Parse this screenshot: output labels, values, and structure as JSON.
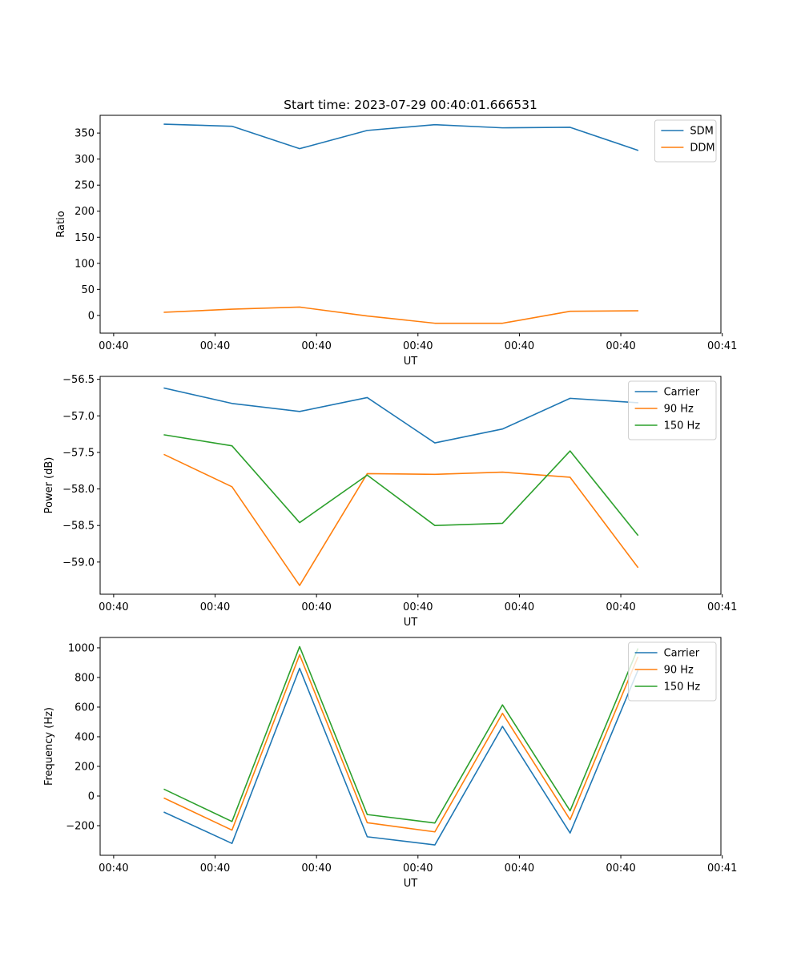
{
  "figure": {
    "title": "Start time: 2023-07-29 00:40:01.666531"
  },
  "chart_data": [
    {
      "type": "line",
      "ylabel": "Ratio",
      "xlabel": "UT",
      "ylim": [
        -34,
        384
      ],
      "yticks": [
        0,
        50,
        100,
        150,
        200,
        250,
        300,
        350
      ],
      "ytick_labels": [
        "0",
        "50",
        "100",
        "150",
        "200",
        "250",
        "300",
        "350"
      ],
      "xlim": [
        -0.2,
        8.98
      ],
      "xticks": [
        0,
        1.5,
        3.0,
        4.5,
        6.0,
        7.5,
        9.0
      ],
      "xtick_labels": [
        "00:40",
        "00:40",
        "00:40",
        "00:40",
        "00:40",
        "00:40",
        "00:41"
      ],
      "x": [
        0.75,
        1.75,
        2.75,
        3.75,
        4.75,
        5.75,
        6.75,
        7.75
      ],
      "legend_position": "top-right",
      "series": [
        {
          "name": "SDM",
          "color": "#1f77b4",
          "values": [
            367,
            363,
            320,
            355,
            366,
            360,
            361,
            317
          ]
        },
        {
          "name": "DDM",
          "color": "#ff7f0e",
          "values": [
            6,
            12,
            16,
            -1,
            -15,
            -15,
            8,
            9
          ]
        }
      ]
    },
    {
      "type": "line",
      "ylabel": "Power (dB)",
      "xlabel": "UT",
      "ylim": [
        -59.44,
        -56.46
      ],
      "yticks": [
        -59.0,
        -58.5,
        -58.0,
        -57.5,
        -57.0,
        -56.5
      ],
      "ytick_labels": [
        "−59.0",
        "−58.5",
        "−58.0",
        "−57.5",
        "−57.0",
        "−56.5"
      ],
      "xlim": [
        -0.2,
        8.98
      ],
      "xticks": [
        0,
        1.5,
        3.0,
        4.5,
        6.0,
        7.5,
        9.0
      ],
      "xtick_labels": [
        "00:40",
        "00:40",
        "00:40",
        "00:40",
        "00:40",
        "00:40",
        "00:41"
      ],
      "x": [
        0.75,
        1.75,
        2.75,
        3.75,
        4.75,
        5.75,
        6.75,
        7.75
      ],
      "legend_position": "top-right",
      "series": [
        {
          "name": "Carrier",
          "color": "#1f77b4",
          "values": [
            -56.62,
            -56.83,
            -56.94,
            -56.75,
            -57.37,
            -57.18,
            -56.76,
            -56.82
          ]
        },
        {
          "name": "90 Hz",
          "color": "#ff7f0e",
          "values": [
            -57.53,
            -57.97,
            -59.32,
            -57.79,
            -57.8,
            -57.77,
            -57.84,
            -59.07
          ]
        },
        {
          "name": "150 Hz",
          "color": "#2ca02c",
          "values": [
            -57.26,
            -57.41,
            -58.46,
            -57.81,
            -58.5,
            -58.47,
            -57.48,
            -58.63
          ]
        }
      ]
    },
    {
      "type": "line",
      "ylabel": "Frequency (Hz)",
      "xlabel": "UT",
      "ylim": [
        -400,
        1070
      ],
      "yticks": [
        -200,
        0,
        200,
        400,
        600,
        800,
        1000
      ],
      "ytick_labels": [
        "−200",
        "0",
        "200",
        "400",
        "600",
        "800",
        "1000"
      ],
      "xlim": [
        -0.2,
        8.98
      ],
      "xticks": [
        0,
        1.5,
        3.0,
        4.5,
        6.0,
        7.5,
        9.0
      ],
      "xtick_labels": [
        "00:40",
        "00:40",
        "00:40",
        "00:40",
        "00:40",
        "00:40",
        "00:41"
      ],
      "x": [
        0.75,
        1.75,
        2.75,
        3.75,
        4.75,
        5.75,
        6.75,
        7.75
      ],
      "legend_position": "top-right",
      "series": [
        {
          "name": "Carrier",
          "color": "#1f77b4",
          "values": [
            -110,
            -320,
            862,
            -275,
            -330,
            470,
            -250,
            845
          ]
        },
        {
          "name": "90 Hz",
          "color": "#ff7f0e",
          "values": [
            -15,
            -230,
            953,
            -180,
            -242,
            558,
            -160,
            935
          ]
        },
        {
          "name": "150 Hz",
          "color": "#2ca02c",
          "values": [
            45,
            -172,
            1008,
            -125,
            -182,
            615,
            -100,
            992
          ]
        }
      ]
    }
  ]
}
